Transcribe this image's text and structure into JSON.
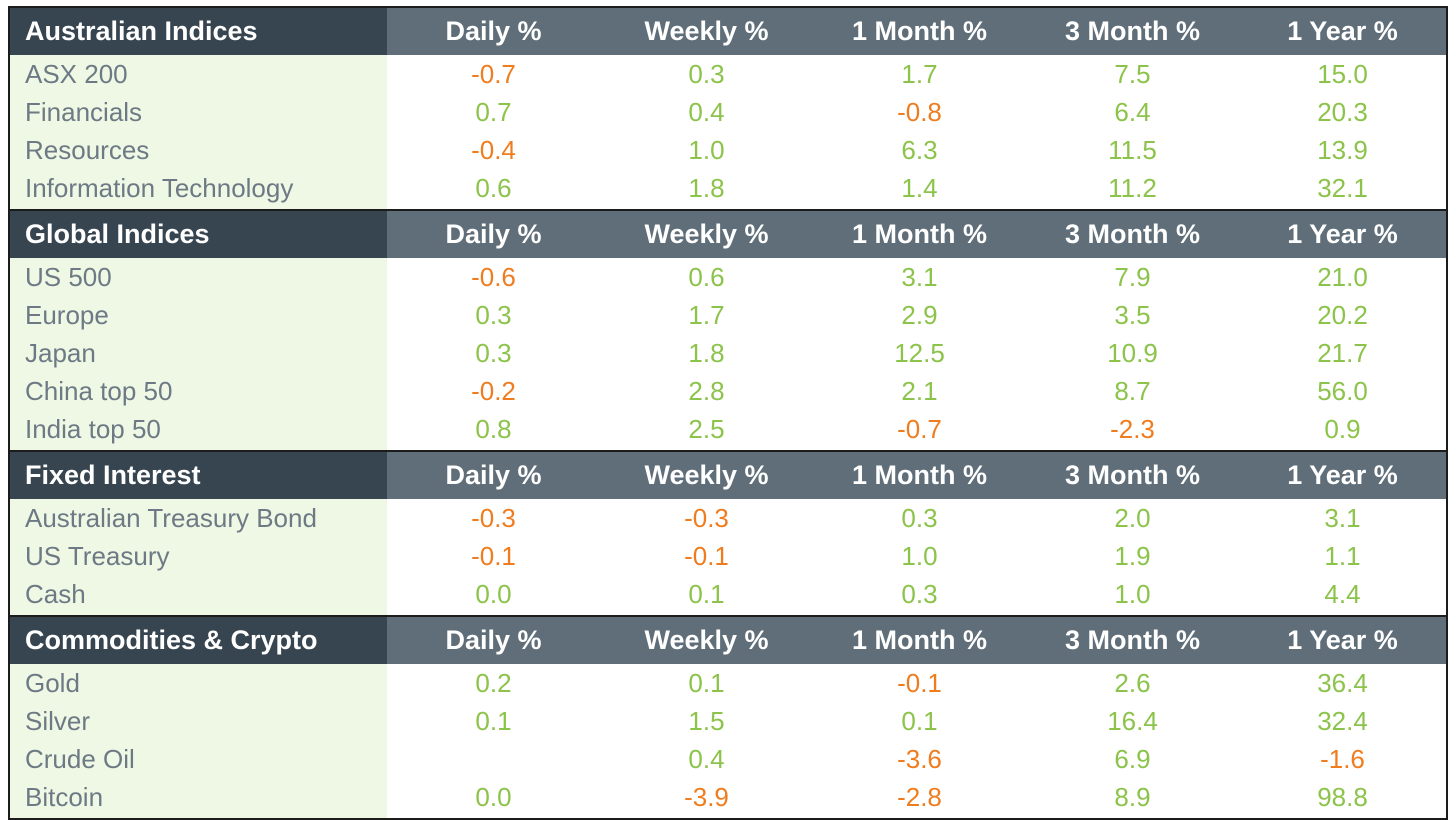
{
  "columns": [
    "Daily %",
    "Weekly %",
    "1 Month %",
    "3 Month %",
    "1 Year %"
  ],
  "colors": {
    "header_bg": "#5f6e78",
    "title_bg": "#364550",
    "name_bg": "#eef8e4",
    "positive": "#8cc34a",
    "negative": "#ef7d1f",
    "name_text": "#6d7a85"
  },
  "sections": [
    {
      "title": "Australian Indices",
      "rows": [
        {
          "name": "ASX 200",
          "values": [
            "-0.7",
            "0.3",
            "1.7",
            "7.5",
            "15.0"
          ]
        },
        {
          "name": "Financials",
          "values": [
            "0.7",
            "0.4",
            "-0.8",
            "6.4",
            "20.3"
          ]
        },
        {
          "name": "Resources",
          "values": [
            "-0.4",
            "1.0",
            "6.3",
            "11.5",
            "13.9"
          ]
        },
        {
          "name": "Information Technology",
          "values": [
            "0.6",
            "1.8",
            "1.4",
            "11.2",
            "32.1"
          ]
        }
      ]
    },
    {
      "title": "Global Indices",
      "rows": [
        {
          "name": "US 500",
          "values": [
            "-0.6",
            "0.6",
            "3.1",
            "7.9",
            "21.0"
          ]
        },
        {
          "name": "Europe",
          "values": [
            "0.3",
            "1.7",
            "2.9",
            "3.5",
            "20.2"
          ]
        },
        {
          "name": "Japan",
          "values": [
            "0.3",
            "1.8",
            "12.5",
            "10.9",
            "21.7"
          ]
        },
        {
          "name": "China top 50",
          "values": [
            "-0.2",
            "2.8",
            "2.1",
            "8.7",
            "56.0"
          ]
        },
        {
          "name": "India top 50",
          "values": [
            "0.8",
            "2.5",
            "-0.7",
            "-2.3",
            "0.9"
          ]
        }
      ]
    },
    {
      "title": "Fixed Interest",
      "rows": [
        {
          "name": "Australian Treasury Bond",
          "values": [
            "-0.3",
            "-0.3",
            "0.3",
            "2.0",
            "3.1"
          ]
        },
        {
          "name": "US Treasury",
          "values": [
            "-0.1",
            "-0.1",
            "1.0",
            "1.9",
            "1.1"
          ]
        },
        {
          "name": "Cash",
          "values": [
            "0.0",
            "0.1",
            "0.3",
            "1.0",
            "4.4"
          ]
        }
      ]
    },
    {
      "title": "Commodities & Crypto",
      "rows": [
        {
          "name": "Gold",
          "values": [
            "0.2",
            "0.1",
            "-0.1",
            "2.6",
            "36.4"
          ]
        },
        {
          "name": "Silver",
          "values": [
            "0.1",
            "1.5",
            "0.1",
            "16.4",
            "32.4"
          ]
        },
        {
          "name": "Crude Oil",
          "values": [
            "",
            "0.4",
            "-3.6",
            "6.9",
            "-1.6"
          ]
        },
        {
          "name": "Bitcoin",
          "values": [
            "0.0",
            "-3.9",
            "-2.8",
            "8.9",
            "98.8"
          ]
        }
      ]
    }
  ]
}
